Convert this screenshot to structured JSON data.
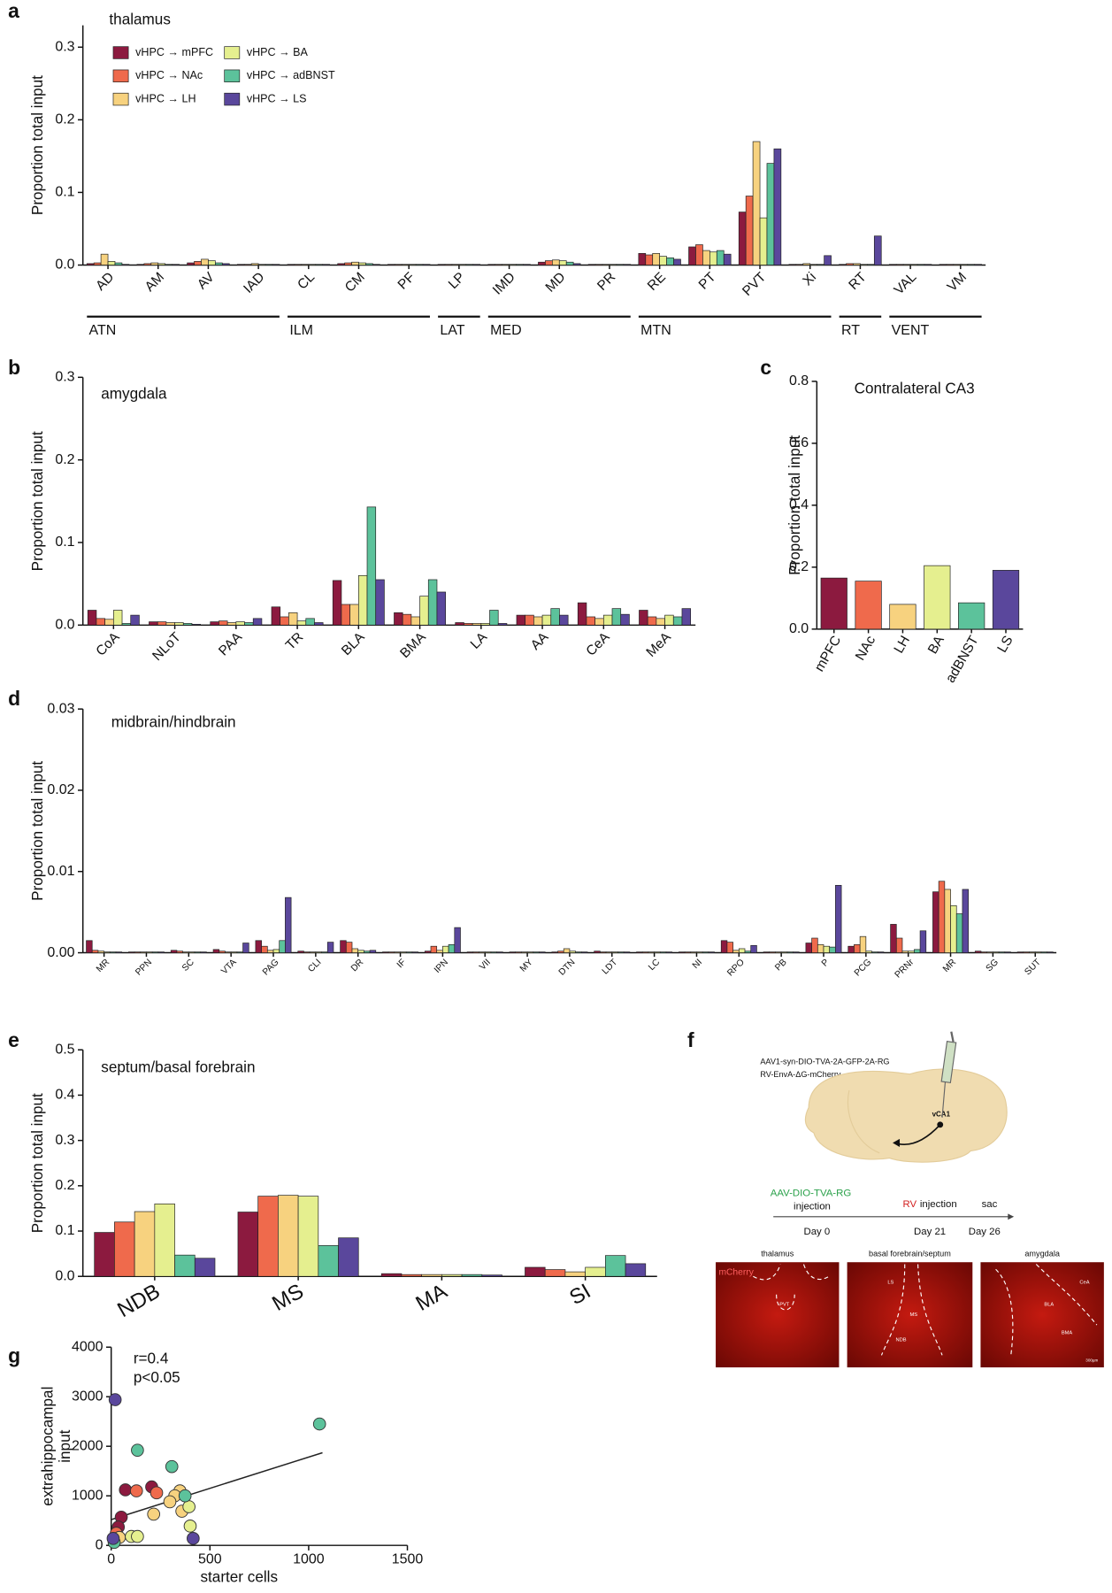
{
  "chart_data": [
    {
      "type": "bar",
      "label": "a",
      "title": "thalamus",
      "ylabel": "Proportion total input",
      "categories": [
        "AD",
        "AM",
        "AV",
        "IAD",
        "CL",
        "CM",
        "PF",
        "LP",
        "IMD",
        "MD",
        "PR",
        "RE",
        "PT",
        "PVT",
        "Xi",
        "RT",
        "VAL",
        "VM"
      ],
      "groups": [
        "ATN",
        "ILM",
        "LAT",
        "MED",
        "MTN",
        "RT",
        "VENT"
      ],
      "series": [
        {
          "name": "vHPC → mPFC",
          "color": "#8c1a3f",
          "values": [
            0.002,
            0.001,
            0.003,
            0.001,
            0.001,
            0.002,
            0.001,
            0.001,
            0.001,
            0.004,
            0.001,
            0.016,
            0.025,
            0.073,
            0.001,
            0.001,
            0.001,
            0.001
          ]
        },
        {
          "name": "vHPC → NAc",
          "color": "#ef6a4c",
          "values": [
            0.003,
            0.002,
            0.005,
            0.001,
            0.001,
            0.003,
            0.001,
            0.001,
            0.001,
            0.006,
            0.001,
            0.014,
            0.028,
            0.095,
            0.001,
            0.002,
            0.001,
            0.001
          ]
        },
        {
          "name": "vHPC → LH",
          "color": "#f7d27f",
          "values": [
            0.015,
            0.003,
            0.008,
            0.002,
            0.001,
            0.004,
            0.001,
            0.001,
            0.001,
            0.007,
            0.001,
            0.016,
            0.02,
            0.17,
            0.002,
            0.002,
            0.001,
            0.001
          ]
        },
        {
          "name": "vHPC → BA",
          "color": "#e5ef8f",
          "values": [
            0.005,
            0.002,
            0.006,
            0.001,
            0.001,
            0.003,
            0.001,
            0.001,
            0.001,
            0.006,
            0.001,
            0.012,
            0.018,
            0.065,
            0.001,
            0.001,
            0.001,
            0.001
          ]
        },
        {
          "name": "vHPC → adBNST",
          "color": "#5cc29b",
          "values": [
            0.003,
            0.001,
            0.003,
            0.001,
            0.001,
            0.002,
            0.001,
            0.001,
            0.001,
            0.004,
            0.001,
            0.01,
            0.02,
            0.14,
            0.001,
            0.001,
            0.001,
            0.001
          ]
        },
        {
          "name": "vHPC → LS",
          "color": "#5a479c",
          "values": [
            0.001,
            0.001,
            0.002,
            0.001,
            0.001,
            0.001,
            0.001,
            0.001,
            0.001,
            0.002,
            0.001,
            0.008,
            0.015,
            0.16,
            0.013,
            0.04,
            0.001,
            0.001
          ]
        }
      ],
      "ylim": [
        0,
        0.33
      ],
      "yticks": [
        {
          "value": 0,
          "label": "0.0"
        },
        0.1,
        0.2,
        0.3
      ]
    },
    {
      "type": "bar",
      "label": "b",
      "title": "amygdala",
      "ylabel": "Proportion total input",
      "categories": [
        "CoA",
        "NLoT",
        "PAA",
        "TR",
        "BLA",
        "BMA",
        "LA",
        "AA",
        "CeA",
        "MeA"
      ],
      "series": [
        {
          "color": "#8c1a3f",
          "values": [
            0.018,
            0.004,
            0.004,
            0.022,
            0.054,
            0.015,
            0.003,
            0.012,
            0.027,
            0.018
          ]
        },
        {
          "color": "#ef6a4c",
          "values": [
            0.008,
            0.004,
            0.005,
            0.01,
            0.025,
            0.013,
            0.002,
            0.012,
            0.01,
            0.01
          ]
        },
        {
          "color": "#f7d27f",
          "values": [
            0.007,
            0.003,
            0.003,
            0.015,
            0.025,
            0.01,
            0.002,
            0.01,
            0.008,
            0.008
          ]
        },
        {
          "color": "#e5ef8f",
          "values": [
            0.018,
            0.003,
            0.004,
            0.005,
            0.06,
            0.035,
            0.002,
            0.012,
            0.012,
            0.012
          ]
        },
        {
          "color": "#5cc29b",
          "values": [
            0.002,
            0.002,
            0.003,
            0.008,
            0.143,
            0.055,
            0.018,
            0.02,
            0.02,
            0.01
          ]
        },
        {
          "color": "#5a479c",
          "values": [
            0.012,
            0.001,
            0.008,
            0.003,
            0.055,
            0.04,
            0.002,
            0.012,
            0.013,
            0.02
          ]
        }
      ],
      "ylim": [
        0,
        0.3
      ],
      "yticks": [
        {
          "value": 0,
          "label": "0.0"
        },
        0.1,
        0.2,
        0.3
      ]
    },
    {
      "type": "bar",
      "label": "c",
      "title": "Contralateral CA3",
      "ylabel": "Proportion total input",
      "categories": [
        "mPFC",
        "NAc",
        "LH",
        "BA",
        "adBNST",
        "LS"
      ],
      "values": [
        0.165,
        0.155,
        0.08,
        0.205,
        0.085,
        0.19
      ],
      "colors": [
        "#8c1a3f",
        "#ef6a4c",
        "#f7d27f",
        "#e5ef8f",
        "#5cc29b",
        "#5a479c"
      ],
      "ylim": [
        0,
        0.8
      ],
      "yticks": [
        {
          "value": 0,
          "label": "0.0"
        },
        0.2,
        0.4,
        0.6,
        0.8
      ]
    },
    {
      "type": "bar",
      "label": "d",
      "title": "midbrain/hindbrain",
      "ylabel": "Proportion total input",
      "categories": [
        "MR",
        "PPN",
        "SC",
        "VTA",
        "PAG",
        "CLI",
        "DR",
        "IF",
        "IPN",
        "VII",
        "MY",
        "DTN",
        "LDT",
        "LC",
        "NI",
        "RPO",
        "PB",
        "P",
        "PCG",
        "PRNr",
        "MR",
        "SG",
        "SUT"
      ],
      "series": [
        {
          "color": "#8c1a3f",
          "values": [
            0.0015,
            0.0001,
            0.0003,
            0.0004,
            0.0015,
            0.0002,
            0.0015,
            0.0001,
            0.0002,
            0.0001,
            0.0001,
            0.0001,
            0.0002,
            0.0001,
            0.0001,
            0.0015,
            0.0001,
            0.0012,
            0.0008,
            0.0035,
            0.0075,
            0.0002,
            0.0001
          ]
        },
        {
          "color": "#ef6a4c",
          "values": [
            0.0003,
            0.0001,
            0.0002,
            0.0002,
            0.0008,
            0.0001,
            0.0013,
            0.0001,
            0.0008,
            0.0001,
            0.0001,
            0.0002,
            0.0001,
            0.0001,
            0.0001,
            0.0013,
            0.0001,
            0.0018,
            0.001,
            0.0018,
            0.0088,
            0.0001,
            0.0001
          ]
        },
        {
          "color": "#f7d27f",
          "values": [
            0.0002,
            0.0001,
            0.0001,
            0.0001,
            0.0003,
            0.0001,
            0.0005,
            0.0001,
            0.0003,
            0.0001,
            0.0001,
            0.0005,
            0.0001,
            0.0001,
            0.0001,
            0.0003,
            0.0001,
            0.001,
            0.002,
            0.0002,
            0.0078,
            0.0001,
            0.0001
          ]
        },
        {
          "color": "#e5ef8f",
          "values": [
            0.0001,
            0.0001,
            0.0001,
            0.0001,
            0.0004,
            0.0001,
            0.0003,
            0.0001,
            0.0008,
            0.0001,
            0.0001,
            0.0002,
            0.0001,
            0.0001,
            0.0001,
            0.0005,
            0.0001,
            0.0008,
            0.0002,
            0.0002,
            0.0058,
            0.0001,
            0.0001
          ]
        },
        {
          "color": "#5cc29b",
          "values": [
            0.0001,
            0.0001,
            0.0001,
            0.0001,
            0.0015,
            0.0001,
            0.0002,
            0.0001,
            0.001,
            0.0001,
            0.0001,
            0.0001,
            0.0001,
            0.0001,
            0.0001,
            0.0002,
            0.0001,
            0.0007,
            0.0001,
            0.0004,
            0.0048,
            0.0001,
            0.0001
          ]
        },
        {
          "color": "#5a479c",
          "values": [
            0.0001,
            0.0001,
            0.0001,
            0.0012,
            0.0068,
            0.0013,
            0.0003,
            0.0001,
            0.0031,
            0.0001,
            0.0001,
            0.0001,
            0.0001,
            0.0001,
            0.0001,
            0.0009,
            0.0001,
            0.0083,
            0.0001,
            0.0027,
            0.0078,
            0.0001,
            0.0001
          ]
        }
      ],
      "ylim": [
        0,
        0.03
      ],
      "yticks": [
        {
          "value": 0,
          "label": "0.00"
        },
        0.01,
        0.02,
        0.03
      ]
    },
    {
      "type": "bar",
      "label": "e",
      "title": "septum/basal forebrain",
      "ylabel": "Proportion total input",
      "categories": [
        "NDB",
        "MS",
        "MA",
        "SI"
      ],
      "series": [
        {
          "color": "#8c1a3f",
          "values": [
            0.097,
            0.142,
            0.006,
            0.02
          ]
        },
        {
          "color": "#ef6a4c",
          "values": [
            0.12,
            0.177,
            0.004,
            0.015
          ]
        },
        {
          "color": "#f7d27f",
          "values": [
            0.143,
            0.179,
            0.004,
            0.01
          ]
        },
        {
          "color": "#e5ef8f",
          "values": [
            0.16,
            0.177,
            0.004,
            0.02
          ]
        },
        {
          "color": "#5cc29b",
          "values": [
            0.047,
            0.068,
            0.004,
            0.046
          ]
        },
        {
          "color": "#5a479c",
          "values": [
            0.04,
            0.085,
            0.003,
            0.028
          ]
        }
      ],
      "ylim": [
        0,
        0.5
      ],
      "yticks": [
        {
          "value": 0,
          "label": "0.0"
        },
        0.1,
        0.2,
        0.3,
        0.4,
        0.5
      ]
    },
    {
      "type": "scatter",
      "label": "g",
      "xlabel": "starter cells",
      "ylabel": [
        "extrahippocampal",
        "input"
      ],
      "annotations": [
        "r=0.4",
        "p<0.05"
      ],
      "series": [
        {
          "color": "#8c1a3f",
          "x": [
            72,
            205,
            51,
            36
          ],
          "y": [
            1120,
            1180,
            570,
            370
          ]
        },
        {
          "color": "#ef6a4c",
          "x": [
            128,
            230,
            26
          ],
          "y": [
            1100,
            1060,
            245
          ]
        },
        {
          "color": "#f7d27f",
          "x": [
            348,
            322,
            297,
            358,
            215,
            41
          ],
          "y": [
            1100,
            1000,
            880,
            690,
            630,
            160
          ]
        },
        {
          "color": "#e5ef8f",
          "x": [
            394,
            400,
            102,
            133
          ],
          "y": [
            780,
            390,
            180,
            180
          ]
        },
        {
          "color": "#5cc29b",
          "x": [
            1055,
            133,
            307,
            374,
            15
          ],
          "y": [
            2450,
            1920,
            1590,
            1000,
            60
          ]
        },
        {
          "color": "#5a479c",
          "x": [
            20,
            415,
            10
          ],
          "y": [
            2940,
            140,
            140
          ]
        }
      ],
      "fit": {
        "x": [
          0,
          1070
        ],
        "y": [
          520,
          1870
        ]
      },
      "xlim": [
        0,
        1500
      ],
      "xticks": [
        0,
        500,
        1000,
        1500
      ],
      "ylim": [
        0,
        4000
      ],
      "yticks": [
        0,
        1000,
        2000,
        3000,
        4000
      ]
    }
  ],
  "diagram": {
    "label": "f",
    "vectors": [
      "AAV1-syn-DIO-TVA-2A-GFP-2A-RG",
      "RV-EnvA-ΔG-mCherry"
    ],
    "site": "vCA1",
    "timeline": [
      {
        "title": "AAV-DIO-TVA-RG",
        "subtitle": "injection",
        "day": "Day 0"
      },
      {
        "title": "RV",
        "subtitle": "injection",
        "day": "Day 21"
      },
      {
        "title": "sac",
        "day": "Day 26"
      }
    ],
    "images": [
      {
        "title": "thalamus",
        "labels": [
          "mCherry",
          "PVT"
        ]
      },
      {
        "title": "basal forebrain/septum",
        "labels": [
          "LS",
          "MS",
          "NDB"
        ]
      },
      {
        "title": "amygdala",
        "labels": [
          "CeA",
          "BLA",
          "BMA",
          "300µm"
        ]
      }
    ]
  }
}
